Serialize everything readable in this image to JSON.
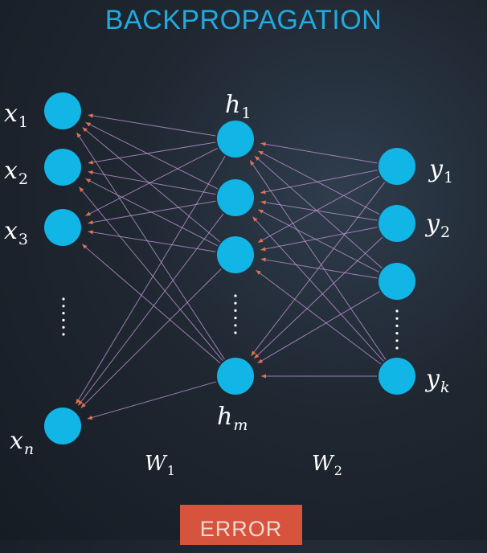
{
  "title": "BACKPROPAGATION",
  "nodes": {
    "inputs": [
      {
        "id": "x1",
        "base": "x",
        "sub": "1"
      },
      {
        "id": "x2",
        "base": "x",
        "sub": "2"
      },
      {
        "id": "x3",
        "base": "x",
        "sub": "3"
      },
      {
        "id": "xn",
        "base": "x",
        "sub": "n"
      }
    ],
    "hidden": [
      {
        "id": "h1",
        "base": "h",
        "sub": "1"
      },
      {
        "id": "h2",
        "base": "",
        "sub": ""
      },
      {
        "id": "h3",
        "base": "",
        "sub": ""
      },
      {
        "id": "hm",
        "base": "h",
        "sub": "m"
      }
    ],
    "outputs": [
      {
        "id": "y1",
        "base": "y",
        "sub": "1"
      },
      {
        "id": "y2",
        "base": "y",
        "sub": "2"
      },
      {
        "id": "y3",
        "base": "",
        "sub": ""
      },
      {
        "id": "yk",
        "base": "y",
        "sub": "k"
      }
    ]
  },
  "weights": [
    {
      "id": "W1",
      "base": "W",
      "sub": "1"
    },
    {
      "id": "W2",
      "base": "W",
      "sub": "2"
    }
  ],
  "error_button": {
    "label": "ERROR"
  },
  "colors": {
    "node": "#11b5e6",
    "edge": "#c79ad9",
    "arrow": "#e2734f",
    "title": "#22a9df",
    "button": "#d6533d"
  }
}
